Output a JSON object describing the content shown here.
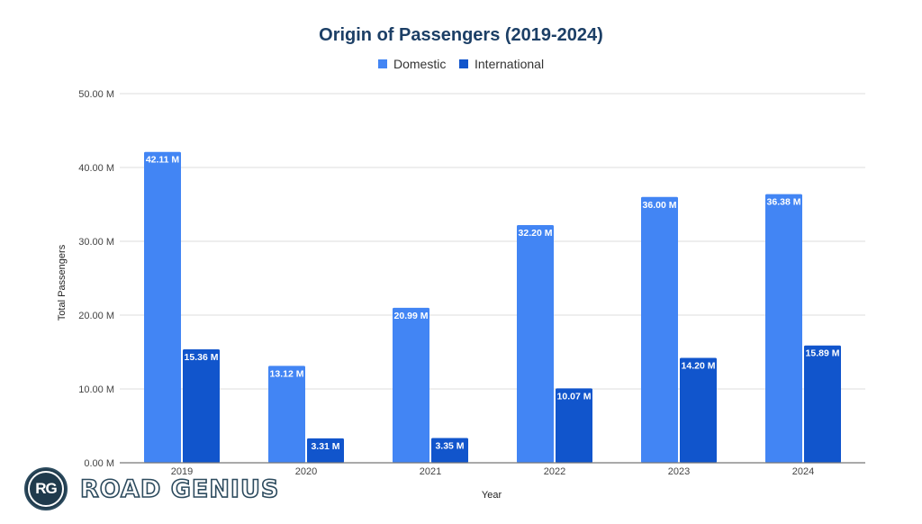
{
  "chart_data": {
    "type": "bar",
    "title": "Origin of Passengers (2019-2024)",
    "xlabel": "Year",
    "ylabel": "Total Passengers",
    "categories": [
      "2019",
      "2020",
      "2021",
      "2022",
      "2023",
      "2024"
    ],
    "series": [
      {
        "name": "Domestic",
        "color": "#4285f4",
        "values": [
          42.11,
          13.12,
          20.99,
          32.2,
          36.0,
          36.38
        ],
        "labels": [
          "42.11 M",
          "13.12 M",
          "20.99 M",
          "32.20 M",
          "36.00 M",
          "36.38 M"
        ]
      },
      {
        "name": "International",
        "color": "#1155cc",
        "values": [
          15.36,
          3.31,
          3.35,
          10.07,
          14.2,
          15.89
        ],
        "labels": [
          "15.36 M",
          "3.31 M",
          "3.35 M",
          "10.07 M",
          "14.20 M",
          "15.89 M"
        ]
      }
    ],
    "ylim": [
      0,
      50
    ],
    "yticks": [
      0,
      10,
      20,
      30,
      40,
      50
    ],
    "ytick_labels": [
      "0.00 M",
      "10.00 M",
      "20.00 M",
      "30.00 M",
      "40.00 M",
      "50.00 M"
    ],
    "unit": "M",
    "grid": true,
    "legend": "top-center"
  },
  "branding": {
    "logo_initials": "RG",
    "logo_text": "ROAD GENIUS"
  }
}
